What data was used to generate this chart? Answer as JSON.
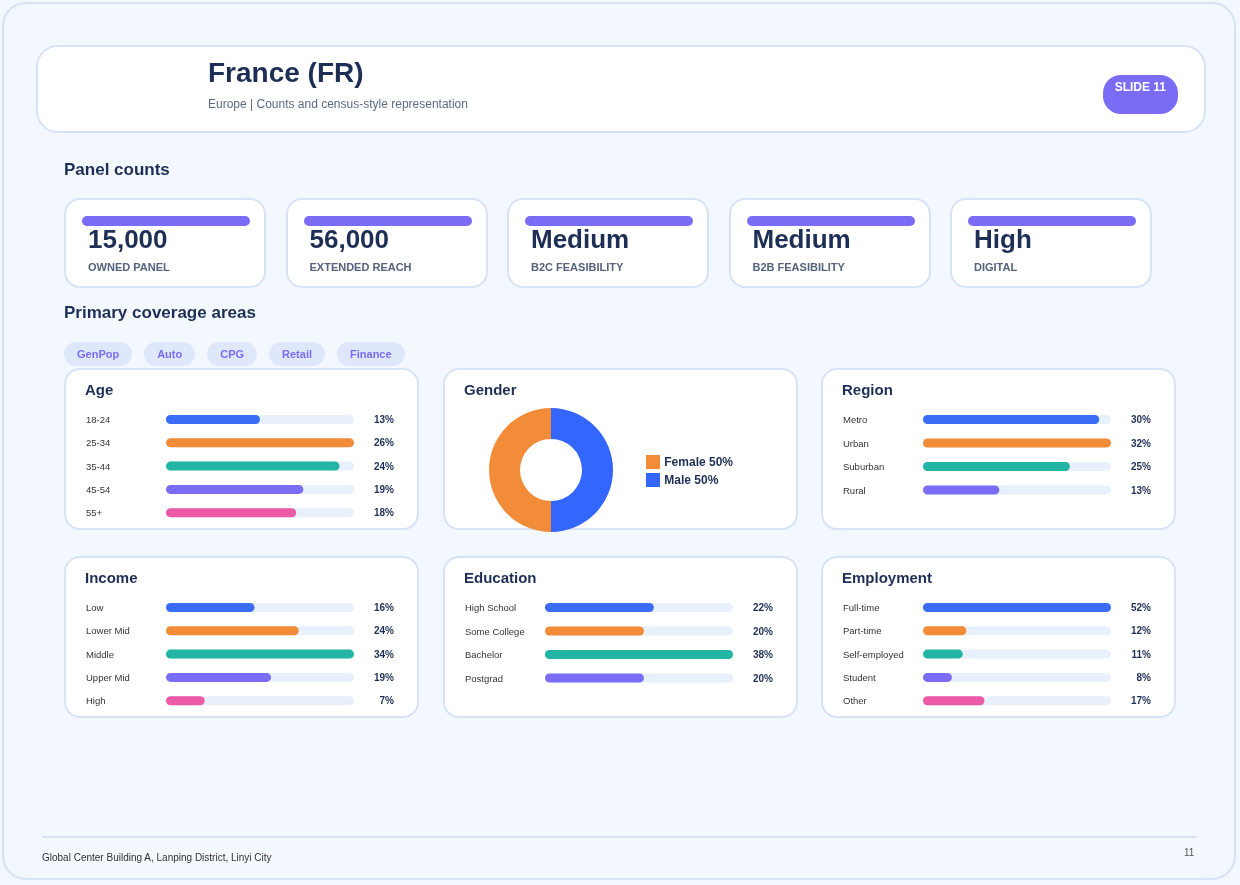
{
  "chart_data": [
    {
      "type": "other",
      "title": "France (FR)",
      "subtitle": "Europe | Counts and census-style representation",
      "annotations": [
        "SLIDE 11",
        "Global Center Building A, Lanping District, Linyi City",
        "11"
      ]
    },
    {
      "type": "other",
      "title": "Panel counts",
      "annotations": [
        "15,000",
        "OWNED PANEL",
        "56,000",
        "EXTENDED REACH",
        "Medium",
        "B2C FEASIBILITY",
        "Medium",
        "B2B FEASIBILITY",
        "High",
        "DIGITAL"
      ]
    },
    {
      "type": "other",
      "title": "Primary coverage areas",
      "annotations": [
        "GenPop",
        "Auto",
        "CPG",
        "Retail",
        "Finance"
      ]
    },
    {
      "type": "bar",
      "orientation": "horizontal",
      "title": "Age",
      "categories": [
        "18-24",
        "25-34",
        "35-44",
        "45-54",
        "55+"
      ],
      "values": [
        13,
        26,
        24,
        19,
        18
      ],
      "value_labels": [
        "13%",
        "26%",
        "24%",
        "19%",
        "18%"
      ],
      "colors": [
        "#3b6cf6",
        "#f28c38",
        "#22b5a5",
        "#7b6cf6",
        "#ec5aa5"
      ]
    },
    {
      "type": "donut",
      "title": "Gender",
      "categories": [
        "Male",
        "Female"
      ],
      "values": [
        50,
        50
      ],
      "value_labels": [
        "50%",
        "50%"
      ],
      "colors": [
        "#3366ff",
        "#f28c38"
      ],
      "legend": "right"
    },
    {
      "type": "bar",
      "orientation": "horizontal",
      "title": "Region",
      "categories": [
        "Metro",
        "Urban",
        "Suburban",
        "Rural"
      ],
      "values": [
        30,
        32,
        25,
        13
      ],
      "value_labels": [
        "30%",
        "32%",
        "25%",
        "13%"
      ],
      "colors": [
        "#3b6cf6",
        "#f28c38",
        "#22b5a5",
        "#7b6cf6"
      ]
    },
    {
      "type": "bar",
      "orientation": "horizontal",
      "title": "Income",
      "categories": [
        "Low",
        "Lower Mid",
        "Middle",
        "Upper Mid",
        "High"
      ],
      "values": [
        16,
        24,
        34,
        19,
        7
      ],
      "value_labels": [
        "16%",
        "24%",
        "34%",
        "19%",
        "7%"
      ],
      "colors": [
        "#3b6cf6",
        "#f28c38",
        "#22b5a5",
        "#7b6cf6",
        "#ec5aa5"
      ]
    },
    {
      "type": "bar",
      "orientation": "horizontal",
      "title": "Education",
      "categories": [
        "High School",
        "Some College",
        "Bachelor",
        "Postgrad"
      ],
      "values": [
        22,
        20,
        38,
        20
      ],
      "value_labels": [
        "22%",
        "20%",
        "38%",
        "20%"
      ],
      "colors": [
        "#3b6cf6",
        "#f28c38",
        "#22b5a5",
        "#7b6cf6"
      ]
    },
    {
      "type": "bar",
      "orientation": "horizontal",
      "title": "Employment",
      "categories": [
        "Full-time",
        "Part-time",
        "Self-employed",
        "Student",
        "Other"
      ],
      "values": [
        52,
        12,
        11,
        8,
        17
      ],
      "value_labels": [
        "52%",
        "12%",
        "11%",
        "8%",
        "17%"
      ],
      "colors": [
        "#3b6cf6",
        "#f28c38",
        "#22b5a5",
        "#7b6cf6",
        "#ec5aa5"
      ]
    }
  ]
}
